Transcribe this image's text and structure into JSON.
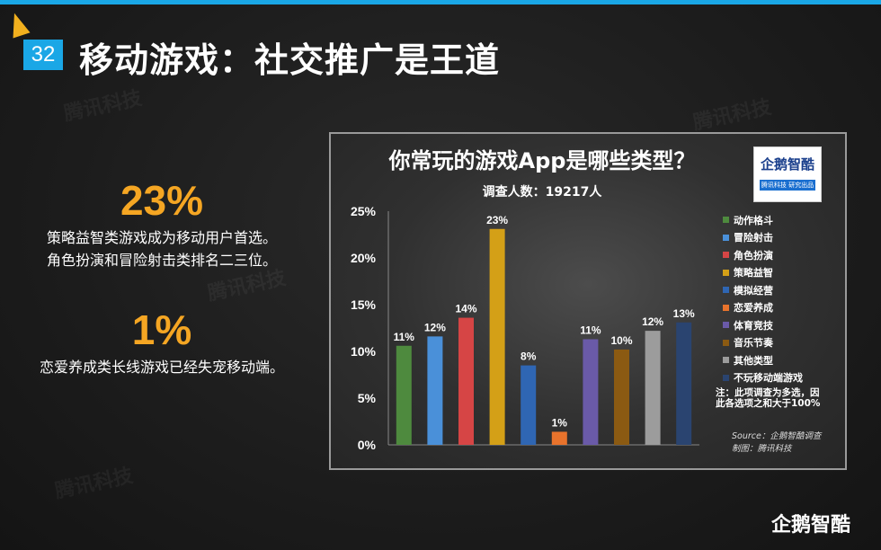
{
  "slide": {
    "number": "32",
    "title": "移动游戏：社交推广是王道",
    "footer_logo": "企鹅智酷",
    "watermark": "腾讯科技"
  },
  "stats": [
    {
      "value": "23%",
      "lines": [
        "策略益智类游戏成为移动用户首选。",
        "角色扮演和冒险射击类排名二三位。"
      ]
    },
    {
      "value": "1%",
      "lines": [
        "恋爱养成类长线游戏已经失宠移动端。"
      ]
    }
  ],
  "chart_box": {
    "logo_main": "企鹅智酷",
    "logo_sub": "腾讯科技 研究出品",
    "note": "注：此项调查为多选，因此各选项之和大于100%",
    "source_lines": [
      "Source：企鹅智酷调查",
      "制图：腾讯科技"
    ]
  },
  "chart_data": {
    "type": "bar",
    "title": "你常玩的游戏App是哪些类型？",
    "subtitle": "调查人数：19217人",
    "categories": [
      "动作格斗",
      "冒险射击",
      "角色扮演",
      "策略益智",
      "模拟经营",
      "恋爱养成",
      "体育竞技",
      "音乐节奏",
      "其他类型",
      "不玩移动端游戏"
    ],
    "values": [
      0.106,
      0.116,
      0.136,
      0.231,
      0.085,
      0.014,
      0.113,
      0.102,
      0.122,
      0.131
    ],
    "data_labels": [
      "11%",
      "12%",
      "14%",
      "23%",
      "8%",
      "1%",
      "11%",
      "10%",
      "12%",
      "13%"
    ],
    "colors": [
      "#4e8a3e",
      "#4a90d9",
      "#d64545",
      "#d4a017",
      "#2f66b3",
      "#e8732c",
      "#6a5aa8",
      "#8b5a12",
      "#9c9c9c",
      "#2a4470"
    ],
    "ylim": [
      0,
      0.25
    ],
    "yticks": [
      "0%",
      "5%",
      "10%",
      "15%",
      "20%",
      "25%"
    ],
    "legend_position": "right",
    "grid": false
  }
}
